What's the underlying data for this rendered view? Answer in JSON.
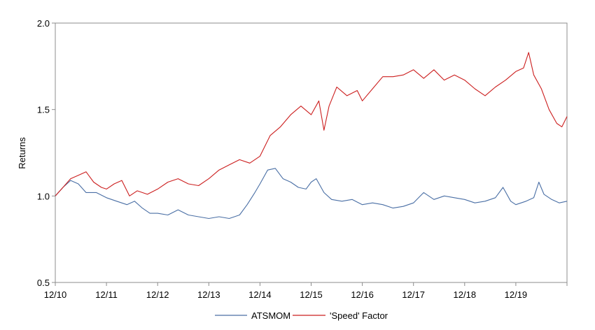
{
  "chart_data": {
    "type": "line",
    "title": "",
    "xlabel": "",
    "ylabel": "Returns",
    "ylim": [
      0.5,
      2.0
    ],
    "yticks": [
      "0.5",
      "1.0",
      "1.5",
      "2.0"
    ],
    "xticks": [
      "12/10",
      "12/11",
      "12/12",
      "12/13",
      "12/14",
      "12/15",
      "12/16",
      "12/17",
      "12/18",
      "12/19"
    ],
    "xlim": [
      2010.0,
      2020.0
    ],
    "grid": false,
    "legend_position": "bottom",
    "series": [
      {
        "name": "ATSMOM",
        "color": "#4a6fa5",
        "x": [
          2010.0,
          2010.15,
          2010.3,
          2010.45,
          2010.6,
          2010.8,
          2011.0,
          2011.2,
          2011.4,
          2011.55,
          2011.7,
          2011.85,
          2012.0,
          2012.2,
          2012.4,
          2012.6,
          2012.8,
          2013.0,
          2013.2,
          2013.4,
          2013.6,
          2013.75,
          2013.9,
          2014.0,
          2014.15,
          2014.3,
          2014.45,
          2014.6,
          2014.75,
          2014.9,
          2015.0,
          2015.1,
          2015.25,
          2015.4,
          2015.6,
          2015.8,
          2016.0,
          2016.2,
          2016.4,
          2016.6,
          2016.8,
          2017.0,
          2017.1,
          2017.2,
          2017.4,
          2017.6,
          2017.8,
          2018.0,
          2018.2,
          2018.4,
          2018.6,
          2018.75,
          2018.9,
          2019.0,
          2019.2,
          2019.35,
          2019.45,
          2019.55,
          2019.7,
          2019.85,
          2020.0
        ],
        "values": [
          1.0,
          1.05,
          1.09,
          1.07,
          1.02,
          1.02,
          0.99,
          0.97,
          0.95,
          0.97,
          0.93,
          0.9,
          0.9,
          0.89,
          0.92,
          0.89,
          0.88,
          0.87,
          0.88,
          0.87,
          0.89,
          0.95,
          1.02,
          1.07,
          1.15,
          1.16,
          1.1,
          1.08,
          1.05,
          1.04,
          1.08,
          1.1,
          1.02,
          0.98,
          0.97,
          0.98,
          0.95,
          0.96,
          0.95,
          0.93,
          0.94,
          0.96,
          0.99,
          1.02,
          0.98,
          1.0,
          0.99,
          0.98,
          0.96,
          0.97,
          0.99,
          1.05,
          0.97,
          0.95,
          0.97,
          0.99,
          1.08,
          1.01,
          0.98,
          0.96,
          0.97
        ]
      },
      {
        "name": "'Speed' Factor",
        "color": "#cc1f1f",
        "x": [
          2010.0,
          2010.15,
          2010.3,
          2010.45,
          2010.6,
          2010.75,
          2010.9,
          2011.0,
          2011.15,
          2011.3,
          2011.45,
          2011.6,
          2011.8,
          2012.0,
          2012.2,
          2012.4,
          2012.6,
          2012.8,
          2013.0,
          2013.2,
          2013.4,
          2013.6,
          2013.8,
          2014.0,
          2014.2,
          2014.4,
          2014.6,
          2014.8,
          2015.0,
          2015.15,
          2015.25,
          2015.35,
          2015.5,
          2015.7,
          2015.9,
          2016.0,
          2016.2,
          2016.4,
          2016.6,
          2016.8,
          2017.0,
          2017.2,
          2017.4,
          2017.6,
          2017.8,
          2018.0,
          2018.2,
          2018.4,
          2018.6,
          2018.8,
          2019.0,
          2019.15,
          2019.25,
          2019.35,
          2019.5,
          2019.65,
          2019.8,
          2019.9,
          2020.0
        ],
        "values": [
          1.0,
          1.05,
          1.1,
          1.12,
          1.14,
          1.08,
          1.05,
          1.04,
          1.07,
          1.09,
          1.0,
          1.03,
          1.01,
          1.04,
          1.08,
          1.1,
          1.07,
          1.06,
          1.1,
          1.15,
          1.18,
          1.21,
          1.19,
          1.23,
          1.35,
          1.4,
          1.47,
          1.52,
          1.47,
          1.55,
          1.38,
          1.52,
          1.63,
          1.58,
          1.61,
          1.55,
          1.62,
          1.69,
          1.69,
          1.7,
          1.73,
          1.68,
          1.73,
          1.67,
          1.7,
          1.67,
          1.62,
          1.58,
          1.63,
          1.67,
          1.72,
          1.74,
          1.83,
          1.7,
          1.62,
          1.5,
          1.42,
          1.4,
          1.46
        ]
      }
    ]
  }
}
